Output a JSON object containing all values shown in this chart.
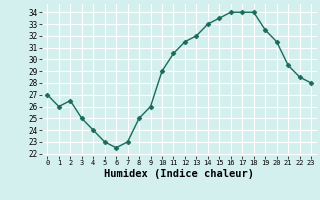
{
  "x": [
    0,
    1,
    2,
    3,
    4,
    5,
    6,
    7,
    8,
    9,
    10,
    11,
    12,
    13,
    14,
    15,
    16,
    17,
    18,
    19,
    20,
    21,
    22,
    23
  ],
  "y": [
    27,
    26,
    26.5,
    25,
    24,
    23,
    22.5,
    23,
    25,
    26,
    29,
    30.5,
    31.5,
    32,
    33,
    33.5,
    34,
    34,
    34,
    32.5,
    31.5,
    29.5,
    28.5,
    28
  ],
  "line_color": "#1a6b5a",
  "marker": "D",
  "marker_size": 2.5,
  "bg_color": "#d4f0ee",
  "grid_color": "#ffffff",
  "xlabel": "Humidex (Indice chaleur)",
  "xlabel_fontsize": 7.5,
  "ylabel_ticks": [
    22,
    23,
    24,
    25,
    26,
    27,
    28,
    29,
    30,
    31,
    32,
    33,
    34
  ],
  "xticks": [
    0,
    1,
    2,
    3,
    4,
    5,
    6,
    7,
    8,
    9,
    10,
    11,
    12,
    13,
    14,
    15,
    16,
    17,
    18,
    19,
    20,
    21,
    22,
    23
  ],
  "ylim": [
    21.8,
    34.7
  ],
  "xlim": [
    -0.5,
    23.5
  ]
}
